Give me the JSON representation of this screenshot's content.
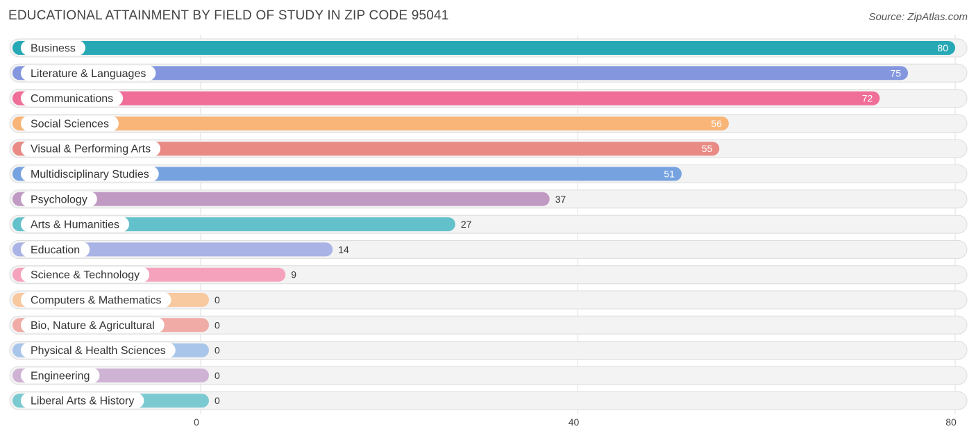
{
  "header": {
    "title": "EDUCATIONAL ATTAINMENT BY FIELD OF STUDY IN ZIP CODE 95041",
    "source": "Source: ZipAtlas.com"
  },
  "chart_data": {
    "type": "bar",
    "orientation": "horizontal",
    "title": "EDUCATIONAL ATTAINMENT BY FIELD OF STUDY IN ZIP CODE 95041",
    "xlabel": "",
    "ylabel": "",
    "xlim": [
      0,
      80
    ],
    "xticks": [
      "0",
      "40",
      "80"
    ],
    "grid": true,
    "categories": [
      "Business",
      "Literature & Languages",
      "Communications",
      "Social Sciences",
      "Visual & Performing Arts",
      "Multidisciplinary Studies",
      "Psychology",
      "Arts & Humanities",
      "Education",
      "Science & Technology",
      "Computers & Mathematics",
      "Bio, Nature & Agricultural",
      "Physical & Health Sciences",
      "Engineering",
      "Liberal Arts & History"
    ],
    "values": [
      80,
      75,
      72,
      56,
      55,
      51,
      37,
      27,
      14,
      9,
      0,
      0,
      0,
      0,
      0
    ],
    "colors": [
      "#27a8b5",
      "#8497de",
      "#f06f98",
      "#f8b577",
      "#e98a85",
      "#76a3e0",
      "#c09ac3",
      "#63c1cc",
      "#a9b3e6",
      "#f5a3bc",
      "#f8c89f",
      "#f0aba6",
      "#a9c5ea",
      "#ceb3d5",
      "#7ccad1"
    ]
  }
}
